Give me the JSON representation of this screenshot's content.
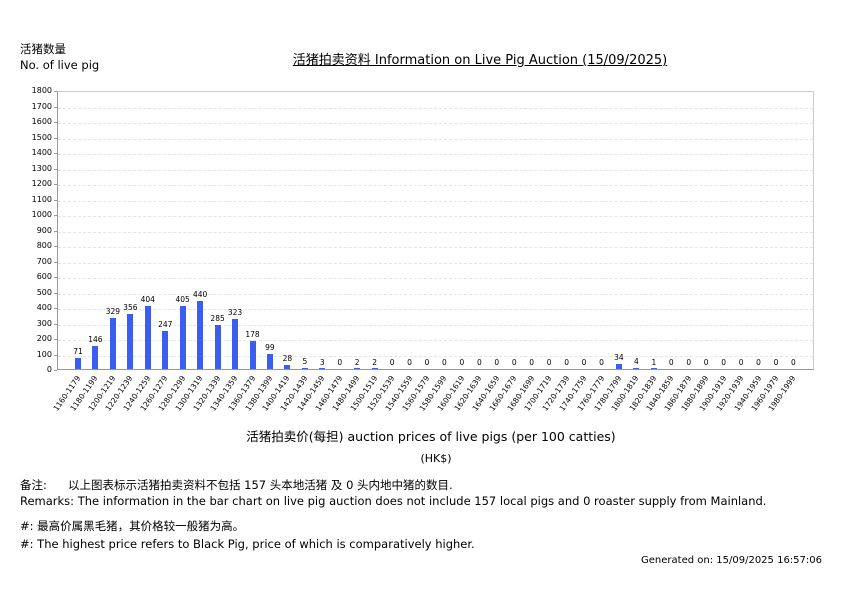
{
  "header": {
    "ylabel_cn": "活猪数量",
    "ylabel_en": "No. of live pig",
    "title": "活猪拍卖资料 Information on Live Pig Auction (15/09/2025)"
  },
  "chart_data": {
    "type": "bar",
    "title": "活猪拍卖资料 Information on Live Pig Auction (15/09/2025)",
    "xlabel": "活猪拍卖价(每担) auction prices of live pigs (per 100 catties)",
    "xunit": "(HK$)",
    "ylabel": "活猪数量 No. of live pig",
    "ylim": [
      0,
      1800
    ],
    "yticks": [
      0,
      100,
      200,
      300,
      400,
      500,
      600,
      700,
      800,
      900,
      1000,
      1100,
      1200,
      1300,
      1400,
      1500,
      1600,
      1700,
      1800
    ],
    "grid": true,
    "legend": null,
    "bar_color": "#3a5ff0",
    "categories": [
      "1160-1179",
      "1180-1199",
      "1200-1219",
      "1220-1239",
      "1240-1259",
      "1260-1279",
      "1280-1299",
      "1300-1319",
      "1320-1339",
      "1340-1359",
      "1360-1379",
      "1380-1399",
      "1400-1419",
      "1420-1439",
      "1440-1459",
      "1460-1479",
      "1480-1499",
      "1500-1519",
      "1520-1539",
      "1540-1559",
      "1560-1579",
      "1580-1599",
      "1600-1619",
      "1620-1639",
      "1640-1659",
      "1660-1679",
      "1680-1699",
      "1700-1719",
      "1720-1739",
      "1740-1759",
      "1760-1779",
      "1780-1799",
      "1800-1819",
      "1820-1839",
      "1840-1859",
      "1860-1879",
      "1880-1899",
      "1900-1919",
      "1920-1939",
      "1940-1959",
      "1960-1979",
      "1980-1999"
    ],
    "values": [
      71,
      146,
      329,
      356,
      404,
      247,
      405,
      440,
      285,
      323,
      178,
      99,
      28,
      5,
      3,
      0,
      2,
      2,
      0,
      0,
      0,
      0,
      0,
      0,
      0,
      0,
      0,
      0,
      0,
      0,
      0,
      34,
      4,
      1,
      0,
      0,
      0,
      0,
      0,
      0,
      0,
      0
    ]
  },
  "axis": {
    "xtitle": "活猪拍卖价(每担) auction prices of live pigs (per 100 catties)",
    "xunit": "(HK$)"
  },
  "remarks": {
    "cn_label": "备注:",
    "cn_text": "以上图表标示活猪拍卖资料不包括 157 头本地活猪 及 0 头内地中猪的数目.",
    "en_text": "Remarks: The information in the bar chart on live pig auction does not include 157 local pigs and 0 roaster supply from Mainland."
  },
  "note": {
    "cn": "#: 最高价属黑毛猪，其价格较一般猪为高。",
    "en": "#: The highest price refers to Black Pig, price of which is comparatively higher."
  },
  "footer": {
    "generated": "Generated on: 15/09/2025 16:57:06"
  }
}
